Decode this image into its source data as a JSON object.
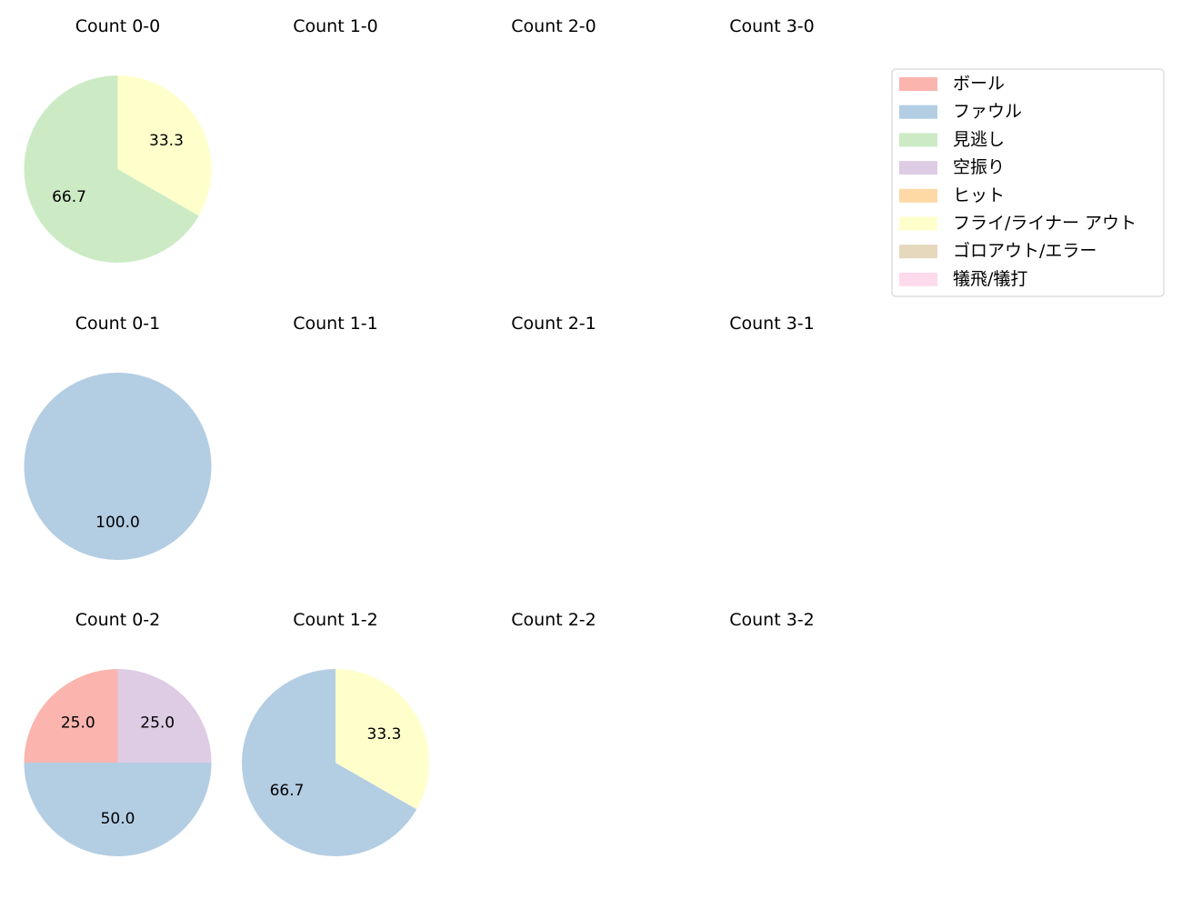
{
  "legend": {
    "position": "top-right",
    "entries": [
      {
        "label": "ボール",
        "color": "#fbb4ae"
      },
      {
        "label": "ファウル",
        "color": "#b3cde3"
      },
      {
        "label": "見逃し",
        "color": "#ccebc5"
      },
      {
        "label": "空振り",
        "color": "#decbe4"
      },
      {
        "label": "ヒット",
        "color": "#fed9a6"
      },
      {
        "label": "フライ/ライナー アウト",
        "color": "#ffffcc"
      },
      {
        "label": "ゴロアウト/エラー",
        "color": "#e5d8bd"
      },
      {
        "label": "犠飛/犠打",
        "color": "#fddaec"
      }
    ]
  },
  "chart_data": [
    {
      "type": "pie",
      "title": "Count 0-0",
      "slices": [
        {
          "label": "見逃し",
          "value": 66.7
        },
        {
          "label": "フライ/ライナー アウト",
          "value": 33.3
        }
      ]
    },
    {
      "type": "pie",
      "title": "Count 1-0",
      "slices": []
    },
    {
      "type": "pie",
      "title": "Count 2-0",
      "slices": []
    },
    {
      "type": "pie",
      "title": "Count 3-0",
      "slices": []
    },
    {
      "type": "pie",
      "title": "Count 0-1",
      "slices": [
        {
          "label": "ファウル",
          "value": 100.0
        }
      ]
    },
    {
      "type": "pie",
      "title": "Count 1-1",
      "slices": []
    },
    {
      "type": "pie",
      "title": "Count 2-1",
      "slices": []
    },
    {
      "type": "pie",
      "title": "Count 3-1",
      "slices": []
    },
    {
      "type": "pie",
      "title": "Count 0-2",
      "slices": [
        {
          "label": "ボール",
          "value": 25.0
        },
        {
          "label": "ファウル",
          "value": 50.0
        },
        {
          "label": "空振り",
          "value": 25.0
        }
      ]
    },
    {
      "type": "pie",
      "title": "Count 1-2",
      "slices": [
        {
          "label": "ファウル",
          "value": 66.7
        },
        {
          "label": "フライ/ライナー アウト",
          "value": 33.3
        }
      ]
    },
    {
      "type": "pie",
      "title": "Count 2-2",
      "slices": []
    },
    {
      "type": "pie",
      "title": "Count 3-2",
      "slices": []
    }
  ]
}
